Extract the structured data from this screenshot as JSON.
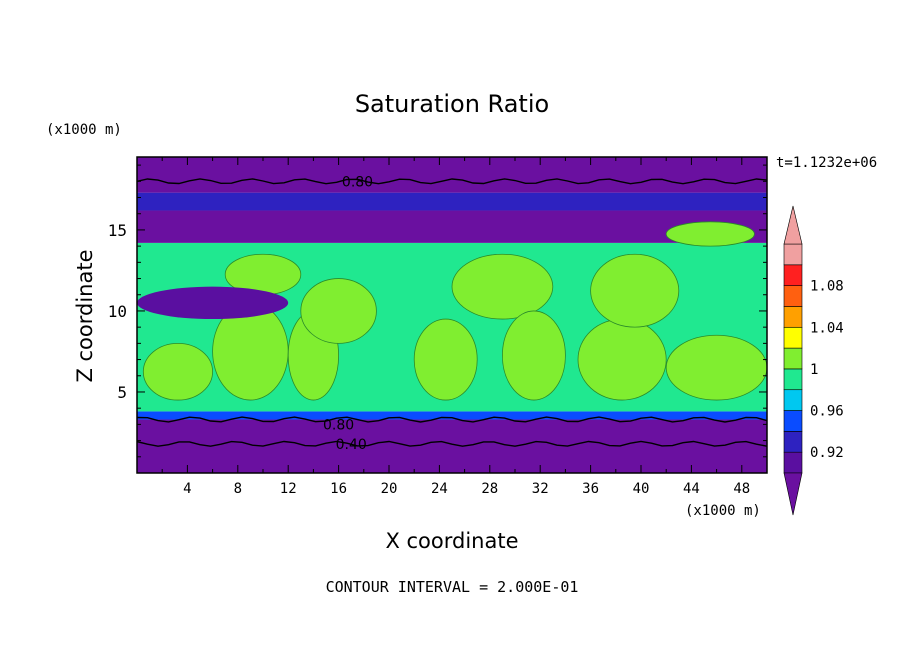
{
  "chart_data": {
    "type": "heatmap",
    "title": "Saturation Ratio",
    "xlabel": "X coordinate",
    "ylabel": "Z coordinate",
    "x_unit": "(x1000 m)",
    "y_unit": "(x1000 m)",
    "time_label": "t=1.1232e+06",
    "footer": "CONTOUR INTERVAL = 2.000E-01",
    "xlim": [
      0,
      50
    ],
    "ylim": [
      0,
      19.5
    ],
    "x_ticks": [
      4,
      8,
      12,
      16,
      20,
      24,
      28,
      32,
      36,
      40,
      44,
      48
    ],
    "y_ticks": [
      5,
      10,
      15
    ],
    "contour_labels": [
      {
        "text": "0.80",
        "x": 17.5,
        "y": 18.0
      },
      {
        "text": "0.80",
        "x": 16.0,
        "y": 3.0
      },
      {
        "text": "0.40",
        "x": 17.0,
        "y": 1.8
      }
    ],
    "colorbar": {
      "labels": [
        "1.08",
        "1.04",
        "1",
        "0.96",
        "0.92"
      ],
      "levels": [
        {
          "max": 0.92,
          "color": "#5a0fa0"
        },
        {
          "max": 0.94,
          "color": "#2e22c0"
        },
        {
          "max": 0.96,
          "color": "#0a4cff"
        },
        {
          "max": 0.98,
          "color": "#00c8f0"
        },
        {
          "max": 1.0,
          "color": "#20e890"
        },
        {
          "max": 1.02,
          "color": "#80ee30"
        },
        {
          "max": 1.04,
          "color": "#ffff00"
        },
        {
          "max": 1.06,
          "color": "#ffa000"
        },
        {
          "max": 1.08,
          "color": "#ff6010"
        },
        {
          "max": 1.1,
          "color": "#ff2020"
        },
        {
          "max": 1.12,
          "color": "#f0a0a0"
        }
      ],
      "below_color": "#6a10a0",
      "above_color": "#f0a0a0"
    },
    "bands": [
      {
        "z": [
          0,
          3.3
        ],
        "level": "below"
      },
      {
        "z": [
          3.3,
          3.8
        ],
        "level": 0.96
      },
      {
        "z": [
          3.8,
          14.2
        ],
        "level": 1.0
      },
      {
        "z": [
          14.2,
          16.2
        ],
        "level": "below"
      },
      {
        "z": [
          16.2,
          17.3
        ],
        "level": 0.94
      },
      {
        "z": [
          17.3,
          19.5
        ],
        "level": "below"
      }
    ],
    "features": [
      {
        "kind": "cloud",
        "x": [
          0.5,
          6
        ],
        "z": [
          4.5,
          8
        ],
        "level": 1.02
      },
      {
        "kind": "cloud",
        "x": [
          6,
          12
        ],
        "z": [
          4.5,
          10.5
        ],
        "level": 1.02
      },
      {
        "kind": "cloud",
        "x": [
          7,
          13
        ],
        "z": [
          11,
          13.5
        ],
        "level": 1.02
      },
      {
        "kind": "cloud",
        "x": [
          12,
          16
        ],
        "z": [
          4.5,
          10
        ],
        "level": 1.02
      },
      {
        "kind": "cloud",
        "x": [
          13,
          19
        ],
        "z": [
          8,
          12
        ],
        "level": 1.02
      },
      {
        "kind": "cloud",
        "x": [
          22,
          27
        ],
        "z": [
          4.5,
          9.5
        ],
        "level": 1.02
      },
      {
        "kind": "cloud",
        "x": [
          25,
          33
        ],
        "z": [
          9.5,
          13.5
        ],
        "level": 1.02
      },
      {
        "kind": "cloud",
        "x": [
          29,
          34
        ],
        "z": [
          4.5,
          10
        ],
        "level": 1.02
      },
      {
        "kind": "cloud",
        "x": [
          35,
          42
        ],
        "z": [
          4.5,
          9.5
        ],
        "level": 1.02
      },
      {
        "kind": "cloud",
        "x": [
          36,
          43
        ],
        "z": [
          9,
          13.5
        ],
        "level": 1.02
      },
      {
        "kind": "cloud",
        "x": [
          42,
          50
        ],
        "z": [
          4.5,
          8.5
        ],
        "level": 1.02
      },
      {
        "kind": "cloud",
        "x": [
          42,
          49
        ],
        "z": [
          14,
          15.5
        ],
        "level": 1.02
      },
      {
        "kind": "dry",
        "x": [
          0,
          12
        ],
        "z": [
          9.5,
          11.5
        ],
        "level": 0.92
      }
    ]
  }
}
